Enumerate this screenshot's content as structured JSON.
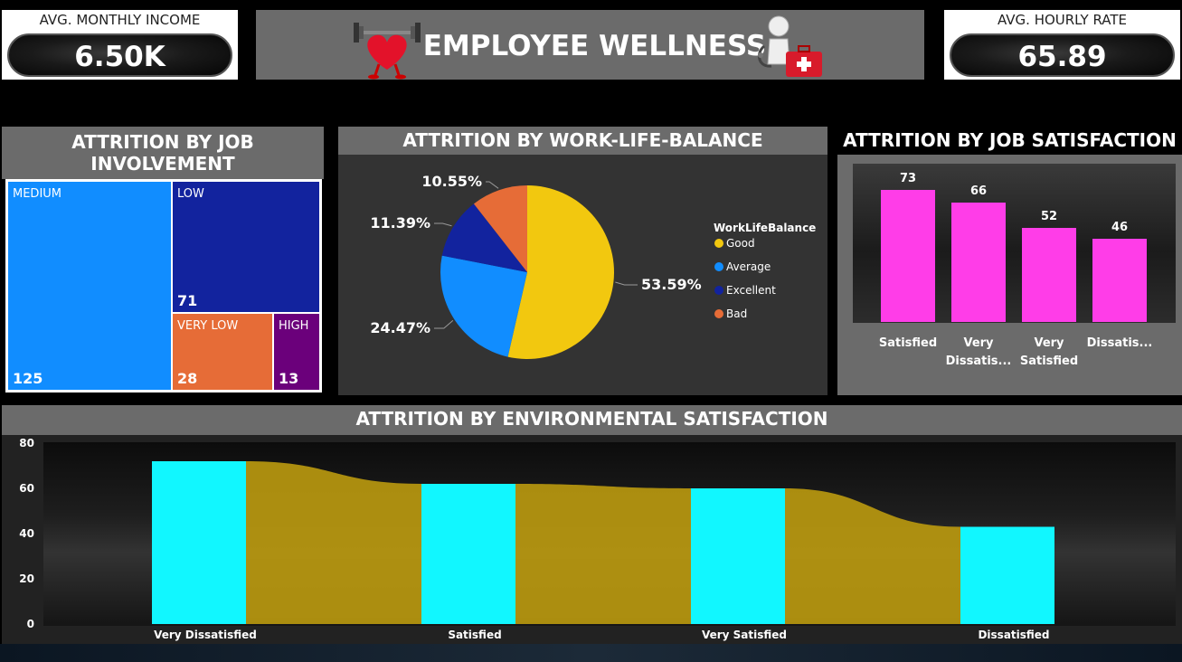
{
  "kpi_left": {
    "label": "AVG. MONTHLY INCOME",
    "value": "6.50K"
  },
  "kpi_right": {
    "label": "AVG. HOURLY RATE",
    "value": "65.89"
  },
  "banner": {
    "title": "EMPLOYEE WELLNESS"
  },
  "colors": {
    "panel_header": "#6b6b6b",
    "pink": "#ff3de8",
    "cyan": "#11f7ff",
    "gold": "#b8980f"
  },
  "chart_data": [
    {
      "type": "treemap",
      "title": "ATTRITION BY JOB INVOLVEMENT",
      "items": [
        {
          "name": "MEDIUM",
          "value": 125,
          "color": "#118dff"
        },
        {
          "name": "LOW",
          "value": 71,
          "color": "#12239e"
        },
        {
          "name": "VERY LOW",
          "value": 28,
          "color": "#e66c37"
        },
        {
          "name": "HIGH",
          "value": 13,
          "color": "#6b007b"
        }
      ]
    },
    {
      "type": "pie",
      "title": "ATTRITION BY WORK-LIFE-BALANCE",
      "legend_title": "WorkLifeBalance",
      "legend_position": "right",
      "slices": [
        {
          "name": "Good",
          "value": 53.59,
          "label": "53.59%",
          "color": "#f2c80f"
        },
        {
          "name": "Average",
          "value": 24.47,
          "label": "24.47%",
          "color": "#118dff"
        },
        {
          "name": "Excellent",
          "value": 11.39,
          "label": "11.39%",
          "color": "#12239e"
        },
        {
          "name": "Bad",
          "value": 10.55,
          "label": "10.55%",
          "color": "#e66c37"
        }
      ]
    },
    {
      "type": "bar",
      "title": "ATTRITION BY JOB SATISFACTION",
      "categories": [
        "Satisfied",
        "Very Dissatis...",
        "Very Satisfied",
        "Dissatis..."
      ],
      "values": [
        73,
        66,
        52,
        46
      ],
      "color": "#ff3de8"
    },
    {
      "type": "bar",
      "title": "ATTRITION BY ENVIRONMENTAL SATISFACTION",
      "categories": [
        "Very Dissatisfied",
        "Satisfied",
        "Very Satisfied",
        "Dissatisfied"
      ],
      "values": [
        72,
        62,
        60,
        43
      ],
      "ylim": [
        0,
        80
      ],
      "yticks": [
        0,
        20,
        40,
        60,
        80
      ],
      "color": "#11f7ff",
      "ribbon_color": "#b8980f"
    }
  ]
}
